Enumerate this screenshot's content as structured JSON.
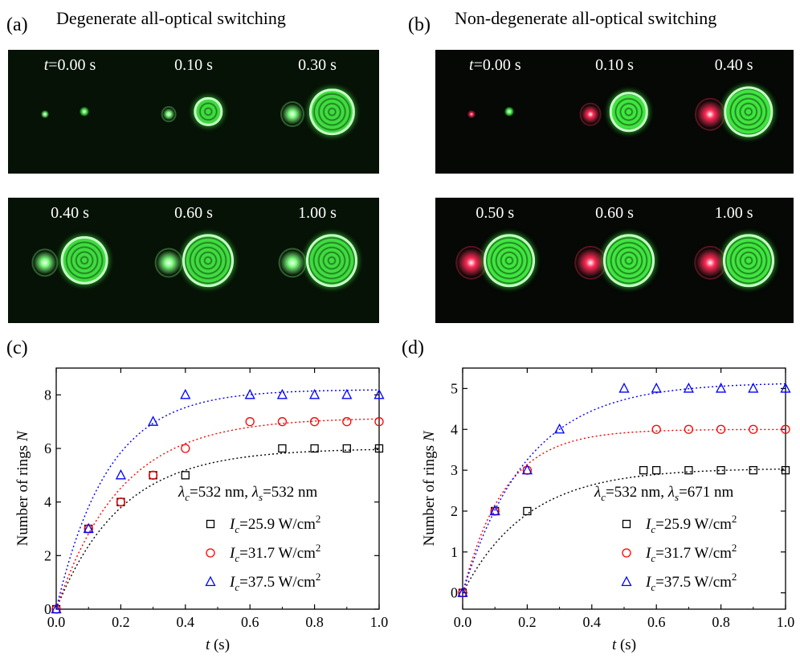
{
  "panels": {
    "a": {
      "label": "(a)",
      "title": "Degenerate all-optical switching"
    },
    "b": {
      "label": "(b)",
      "title": "Non-degenerate all-optical switching"
    },
    "c": {
      "label": "(c)"
    },
    "d": {
      "label": "(d)"
    }
  },
  "image_strips": {
    "a": {
      "row1": [
        {
          "time_prefix": "t",
          "time": "=0.00 s",
          "signal_ring": 0.0,
          "control_ring": 0.0
        },
        {
          "time_prefix": "",
          "time": "0.10 s",
          "signal_ring": 0.15,
          "control_ring": 0.45
        },
        {
          "time_prefix": "",
          "time": "0.30 s",
          "signal_ring": 0.5,
          "control_ring": 0.85
        }
      ],
      "row2": [
        {
          "time_prefix": "",
          "time": "0.40 s",
          "signal_ring": 0.6,
          "control_ring": 0.9
        },
        {
          "time_prefix": "",
          "time": "0.60 s",
          "signal_ring": 0.65,
          "control_ring": 1.0
        },
        {
          "time_prefix": "",
          "time": "1.00 s",
          "signal_ring": 0.65,
          "control_ring": 1.0
        }
      ],
      "signal_color": "#7dff7d",
      "control_color": "#3fdc3f"
    },
    "b": {
      "row1": [
        {
          "time_prefix": "t",
          "time": "=0.00 s",
          "signal_ring": 0.0,
          "control_ring": 0.0
        },
        {
          "time_prefix": "",
          "time": "0.10 s",
          "signal_ring": 0.4,
          "control_ring": 0.7
        },
        {
          "time_prefix": "",
          "time": "0.40 s",
          "signal_ring": 0.75,
          "control_ring": 0.95
        }
      ],
      "row2": [
        {
          "time_prefix": "",
          "time": "0.50 s",
          "signal_ring": 0.8,
          "control_ring": 1.0
        },
        {
          "time_prefix": "",
          "time": "0.60 s",
          "signal_ring": 0.8,
          "control_ring": 1.0
        },
        {
          "time_prefix": "",
          "time": "1.00 s",
          "signal_ring": 0.8,
          "control_ring": 1.0
        }
      ],
      "signal_color": "#ff2a55",
      "control_color": "#3fe63f"
    }
  },
  "chart_data": [
    {
      "type": "scatter",
      "panel": "c",
      "xlabel_italic": "t",
      "xlabel_rest": " (s)",
      "ylabel_main": "Number of rings ",
      "ylabel_italic": "N",
      "xlim": [
        0.0,
        1.0
      ],
      "ylim": [
        0,
        9
      ],
      "xticks": [
        "0.0",
        "0.2",
        "0.4",
        "0.6",
        "0.8",
        "1.0"
      ],
      "yticks": [
        "0",
        "2",
        "4",
        "6",
        "8"
      ],
      "yticks_values": [
        0,
        2,
        4,
        6,
        8
      ],
      "annotation": {
        "lc": "λ",
        "lc_sub": "c",
        "lc_val": "=532 nm, ",
        "ls": "λ",
        "ls_sub": "s",
        "ls_val": "=532 nm"
      },
      "legend_position": "lower-right",
      "series": [
        {
          "name_main": "I",
          "name_sub": "c",
          "name_rest": "=25.9 W/cm",
          "name_sup": "2",
          "marker": "square",
          "color": "#000000",
          "x": [
            0.0,
            0.1,
            0.2,
            0.3,
            0.4,
            0.7,
            0.8,
            0.9,
            1.0
          ],
          "y": [
            0,
            3,
            4,
            5,
            5,
            6,
            6,
            6,
            6
          ],
          "fit": {
            "amplitude": 6.0,
            "tau": 0.2
          }
        },
        {
          "name_main": "I",
          "name_sub": "c",
          "name_rest": "=31.7 W/cm",
          "name_sup": "2",
          "marker": "circle",
          "color": "#ff0000",
          "x": [
            0.0,
            0.1,
            0.2,
            0.3,
            0.4,
            0.6,
            0.7,
            0.8,
            0.9,
            1.0
          ],
          "y": [
            0,
            3,
            4,
            5,
            6,
            7,
            7,
            7,
            7,
            7
          ],
          "fit": {
            "amplitude": 7.15,
            "tau": 0.2
          }
        },
        {
          "name_main": "I",
          "name_sub": "c",
          "name_rest": "=37.5 W/cm",
          "name_sup": "2",
          "marker": "triangle",
          "color": "#0000ff",
          "x": [
            0.0,
            0.1,
            0.2,
            0.3,
            0.4,
            0.6,
            0.7,
            0.8,
            0.9,
            1.0
          ],
          "y": [
            0,
            3,
            5,
            7,
            8,
            8,
            8,
            8,
            8,
            8
          ],
          "fit": {
            "amplitude": 8.2,
            "tau": 0.16
          }
        }
      ]
    },
    {
      "type": "scatter",
      "panel": "d",
      "xlabel_italic": "t",
      "xlabel_rest": " (s)",
      "ylabel_main": "Number of rings ",
      "ylabel_italic": "N",
      "xlim": [
        0.0,
        1.0
      ],
      "ylim": [
        -0.4,
        5.5
      ],
      "xticks": [
        "0.0",
        "0.2",
        "0.4",
        "0.6",
        "0.8",
        "1.0"
      ],
      "yticks": [
        "0",
        "1",
        "2",
        "3",
        "4",
        "5"
      ],
      "yticks_values": [
        0,
        1,
        2,
        3,
        4,
        5
      ],
      "annotation": {
        "lc": "λ",
        "lc_sub": "c",
        "lc_val": "=532 nm, ",
        "ls": "λ",
        "ls_sub": "s",
        "ls_val": "=671 nm"
      },
      "legend_position": "lower-right",
      "series": [
        {
          "name_main": "I",
          "name_sub": "c",
          "name_rest": "=25.9 W/cm",
          "name_sup": "2",
          "marker": "square",
          "color": "#000000",
          "x": [
            0.0,
            0.1,
            0.2,
            0.56,
            0.6,
            0.7,
            0.8,
            0.9,
            1.0
          ],
          "y": [
            0,
            2,
            2,
            3,
            3,
            3,
            3,
            3,
            3
          ],
          "fit": {
            "amplitude": 3.05,
            "tau": 0.2
          }
        },
        {
          "name_main": "I",
          "name_sub": "c",
          "name_rest": "=31.7 W/cm",
          "name_sup": "2",
          "marker": "circle",
          "color": "#ff0000",
          "x": [
            0.0,
            0.1,
            0.2,
            0.6,
            0.7,
            0.8,
            0.9,
            1.0
          ],
          "y": [
            0,
            2,
            3,
            4,
            4,
            4,
            4,
            4
          ],
          "fit": {
            "amplitude": 4.0,
            "tau": 0.13
          }
        },
        {
          "name_main": "I",
          "name_sub": "c",
          "name_rest": "=37.5 W/cm",
          "name_sup": "2",
          "marker": "triangle",
          "color": "#0000ff",
          "x": [
            0.0,
            0.1,
            0.2,
            0.3,
            0.5,
            0.6,
            0.7,
            0.8,
            0.9,
            1.0
          ],
          "y": [
            0,
            2,
            3,
            4,
            5,
            5,
            5,
            5,
            5,
            5
          ],
          "fit": {
            "amplitude": 5.15,
            "tau": 0.2
          }
        }
      ]
    }
  ]
}
